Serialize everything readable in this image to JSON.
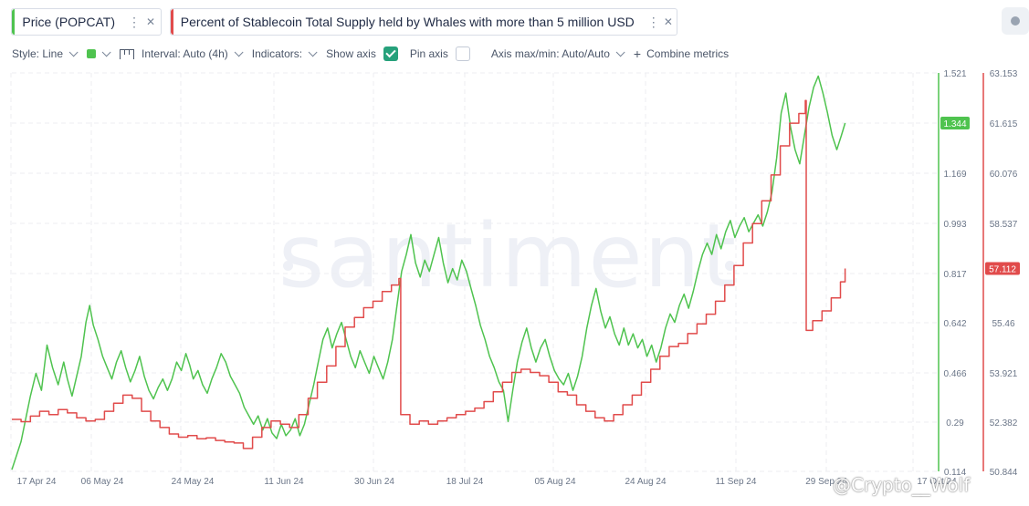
{
  "metrics": [
    {
      "label": "Price (POPCAT)",
      "color": "#4fc34f"
    },
    {
      "label": "Percent of Stablecoin Total Supply held by Whales with more than 5 million USD",
      "color": "#e14b4b"
    }
  ],
  "toolbar": {
    "style": "Style: Line",
    "interval": "Interval: Auto (4h)",
    "indicators": "Indicators:",
    "show_axis": "Show axis",
    "show_axis_checked": true,
    "pin_axis": "Pin axis",
    "pin_axis_checked": false,
    "axis_maxmin": "Axis max/min: Auto/Auto",
    "combine": "Combine metrics"
  },
  "watermark": "santiment",
  "credit": "@Crypto__Wolf",
  "chart_data": {
    "type": "line",
    "x_labels": [
      "17 Apr 24",
      "06 May 24",
      "24 May 24",
      "11 Jun 24",
      "30 Jun 24",
      "18 Jul 24",
      "05 Aug 24",
      "24 Aug 24",
      "11 Sep 24",
      "29 Sep 24",
      "17 Oct 24"
    ],
    "y_price_axis": [
      "1.521",
      "1.344",
      "1.169",
      "0.993",
      "0.817",
      "0.642",
      "0.466",
      "0.29",
      "0.114"
    ],
    "y_stable_axis": [
      "63.153",
      "61.615",
      "60.076",
      "58.537",
      "57.112",
      "55.46",
      "53.921",
      "52.382",
      "50.844"
    ],
    "price_ylim": [
      0.114,
      1.521
    ],
    "stable_ylim": [
      50.844,
      63.153
    ],
    "current_price_label": "1.344",
    "current_stable_label": "57.112",
    "grid": true,
    "series": [
      {
        "name": "Price (POPCAT)",
        "color": "#4fc34f",
        "points": [
          [
            0.0,
            0.12
          ],
          [
            0.5,
            0.17
          ],
          [
            1.0,
            0.22
          ],
          [
            1.5,
            0.3
          ],
          [
            2.0,
            0.38
          ],
          [
            2.6,
            0.46
          ],
          [
            3.2,
            0.4
          ],
          [
            3.8,
            0.56
          ],
          [
            4.4,
            0.48
          ],
          [
            5.0,
            0.42
          ],
          [
            5.6,
            0.5
          ],
          [
            6.0,
            0.44
          ],
          [
            6.5,
            0.38
          ],
          [
            7.0,
            0.45
          ],
          [
            7.5,
            0.52
          ],
          [
            8.0,
            0.64
          ],
          [
            8.4,
            0.7
          ],
          [
            8.8,
            0.63
          ],
          [
            9.3,
            0.58
          ],
          [
            9.8,
            0.52
          ],
          [
            10.3,
            0.48
          ],
          [
            10.8,
            0.44
          ],
          [
            11.3,
            0.5
          ],
          [
            11.8,
            0.54
          ],
          [
            12.3,
            0.48
          ],
          [
            12.8,
            0.43
          ],
          [
            13.3,
            0.47
          ],
          [
            13.8,
            0.52
          ],
          [
            14.3,
            0.45
          ],
          [
            14.8,
            0.4
          ],
          [
            15.3,
            0.37
          ],
          [
            15.8,
            0.41
          ],
          [
            16.3,
            0.44
          ],
          [
            16.8,
            0.4
          ],
          [
            17.3,
            0.44
          ],
          [
            17.8,
            0.5
          ],
          [
            18.3,
            0.47
          ],
          [
            18.8,
            0.53
          ],
          [
            19.2,
            0.49
          ],
          [
            19.6,
            0.44
          ],
          [
            20.1,
            0.47
          ],
          [
            20.6,
            0.42
          ],
          [
            21.1,
            0.39
          ],
          [
            21.6,
            0.44
          ],
          [
            22.1,
            0.48
          ],
          [
            22.6,
            0.53
          ],
          [
            23.1,
            0.5
          ],
          [
            23.6,
            0.45
          ],
          [
            24.1,
            0.42
          ],
          [
            24.6,
            0.39
          ],
          [
            25.1,
            0.34
          ],
          [
            25.6,
            0.31
          ],
          [
            26.1,
            0.28
          ],
          [
            26.6,
            0.31
          ],
          [
            27.1,
            0.26
          ],
          [
            27.6,
            0.3
          ],
          [
            28.1,
            0.25
          ],
          [
            28.6,
            0.23
          ],
          [
            29.1,
            0.28
          ],
          [
            29.6,
            0.24
          ],
          [
            30.1,
            0.26
          ],
          [
            30.6,
            0.3
          ],
          [
            31.1,
            0.24
          ],
          [
            31.6,
            0.28
          ],
          [
            32.1,
            0.35
          ],
          [
            32.6,
            0.42
          ],
          [
            33.1,
            0.5
          ],
          [
            33.6,
            0.58
          ],
          [
            34.1,
            0.62
          ],
          [
            34.6,
            0.55
          ],
          [
            35.1,
            0.6
          ],
          [
            35.6,
            0.64
          ],
          [
            36.1,
            0.58
          ],
          [
            36.6,
            0.52
          ],
          [
            37.1,
            0.48
          ],
          [
            37.6,
            0.54
          ],
          [
            38.1,
            0.5
          ],
          [
            38.6,
            0.46
          ],
          [
            39.1,
            0.52
          ],
          [
            39.6,
            0.48
          ],
          [
            40.1,
            0.44
          ],
          [
            40.6,
            0.5
          ],
          [
            41.1,
            0.58
          ],
          [
            41.6,
            0.7
          ],
          [
            42.1,
            0.82
          ],
          [
            42.6,
            0.88
          ],
          [
            43.1,
            0.95
          ],
          [
            43.6,
            0.85
          ],
          [
            44.1,
            0.8
          ],
          [
            44.6,
            0.86
          ],
          [
            45.1,
            0.82
          ],
          [
            45.6,
            0.88
          ],
          [
            46.1,
            0.94
          ],
          [
            46.6,
            0.85
          ],
          [
            47.1,
            0.78
          ],
          [
            47.6,
            0.83
          ],
          [
            48.1,
            0.79
          ],
          [
            48.6,
            0.86
          ],
          [
            49.1,
            0.82
          ],
          [
            49.6,
            0.76
          ],
          [
            50.1,
            0.7
          ],
          [
            50.6,
            0.63
          ],
          [
            51.1,
            0.58
          ],
          [
            51.6,
            0.52
          ],
          [
            52.1,
            0.48
          ],
          [
            52.6,
            0.43
          ],
          [
            53.1,
            0.4
          ],
          [
            53.6,
            0.29
          ],
          [
            54.1,
            0.4
          ],
          [
            54.6,
            0.5
          ],
          [
            55.1,
            0.57
          ],
          [
            55.6,
            0.62
          ],
          [
            56.1,
            0.55
          ],
          [
            56.6,
            0.5
          ],
          [
            57.1,
            0.55
          ],
          [
            57.6,
            0.58
          ],
          [
            58.1,
            0.52
          ],
          [
            58.6,
            0.47
          ],
          [
            59.1,
            0.44
          ],
          [
            59.6,
            0.42
          ],
          [
            60.1,
            0.46
          ],
          [
            60.6,
            0.4
          ],
          [
            61.1,
            0.45
          ],
          [
            61.6,
            0.52
          ],
          [
            62.1,
            0.62
          ],
          [
            62.6,
            0.7
          ],
          [
            63.1,
            0.76
          ],
          [
            63.6,
            0.68
          ],
          [
            64.1,
            0.62
          ],
          [
            64.6,
            0.66
          ],
          [
            65.1,
            0.6
          ],
          [
            65.6,
            0.56
          ],
          [
            66.1,
            0.62
          ],
          [
            66.6,
            0.56
          ],
          [
            67.1,
            0.6
          ],
          [
            67.6,
            0.55
          ],
          [
            68.1,
            0.58
          ],
          [
            68.6,
            0.52
          ],
          [
            69.1,
            0.56
          ],
          [
            69.6,
            0.5
          ],
          [
            70.1,
            0.55
          ],
          [
            70.6,
            0.62
          ],
          [
            71.1,
            0.67
          ],
          [
            71.6,
            0.64
          ],
          [
            72.1,
            0.7
          ],
          [
            72.6,
            0.74
          ],
          [
            73.1,
            0.69
          ],
          [
            73.6,
            0.75
          ],
          [
            74.1,
            0.82
          ],
          [
            74.6,
            0.88
          ],
          [
            75.1,
            0.92
          ],
          [
            75.6,
            0.88
          ],
          [
            76.1,
            0.95
          ],
          [
            76.6,
            0.9
          ],
          [
            77.1,
            0.96
          ],
          [
            77.6,
            1.0
          ],
          [
            78.1,
            0.94
          ],
          [
            78.6,
            0.98
          ],
          [
            79.1,
            1.01
          ],
          [
            79.6,
            0.96
          ],
          [
            80.1,
            0.99
          ],
          [
            80.6,
            1.02
          ],
          [
            81.1,
            0.98
          ],
          [
            81.6,
            1.03
          ],
          [
            82.1,
            1.1
          ],
          [
            82.6,
            1.22
          ],
          [
            83.1,
            1.38
          ],
          [
            83.6,
            1.45
          ],
          [
            84.1,
            1.33
          ],
          [
            84.6,
            1.25
          ],
          [
            85.1,
            1.2
          ],
          [
            85.6,
            1.3
          ],
          [
            86.1,
            1.4
          ],
          [
            86.6,
            1.47
          ],
          [
            87.1,
            1.51
          ],
          [
            87.6,
            1.45
          ],
          [
            88.1,
            1.38
          ],
          [
            88.6,
            1.3
          ],
          [
            89.1,
            1.25
          ],
          [
            89.6,
            1.3
          ],
          [
            90.0,
            1.344
          ]
        ]
      },
      {
        "name": "Percent of Stablecoin Total Supply held by Whales with more than 5 million USD",
        "color": "#e14b4b",
        "points": [
          [
            0.0,
            52.45
          ],
          [
            1.0,
            52.38
          ],
          [
            2.0,
            52.55
          ],
          [
            3.0,
            52.7
          ],
          [
            4.0,
            52.6
          ],
          [
            5.0,
            52.75
          ],
          [
            6.0,
            52.65
          ],
          [
            7.0,
            52.5
          ],
          [
            8.0,
            52.4
          ],
          [
            9.0,
            52.45
          ],
          [
            10.0,
            52.7
          ],
          [
            11.0,
            52.95
          ],
          [
            12.0,
            53.2
          ],
          [
            13.0,
            53.1
          ],
          [
            14.0,
            52.7
          ],
          [
            15.0,
            52.4
          ],
          [
            16.0,
            52.2
          ],
          [
            17.0,
            52.0
          ],
          [
            18.0,
            51.9
          ],
          [
            19.0,
            51.95
          ],
          [
            20.0,
            51.85
          ],
          [
            21.0,
            51.88
          ],
          [
            22.0,
            51.8
          ],
          [
            23.0,
            51.75
          ],
          [
            24.0,
            51.72
          ],
          [
            25.0,
            51.55
          ],
          [
            26.0,
            51.9
          ],
          [
            27.0,
            52.2
          ],
          [
            28.0,
            52.4
          ],
          [
            29.0,
            52.3
          ],
          [
            30.0,
            52.2
          ],
          [
            31.0,
            52.6
          ],
          [
            32.0,
            53.1
          ],
          [
            33.0,
            53.6
          ],
          [
            34.0,
            54.1
          ],
          [
            35.0,
            54.7
          ],
          [
            36.0,
            55.3
          ],
          [
            37.0,
            55.6
          ],
          [
            38.0,
            55.9
          ],
          [
            39.0,
            56.1
          ],
          [
            40.0,
            56.4
          ],
          [
            41.0,
            56.6
          ],
          [
            41.8,
            56.8
          ],
          [
            42.0,
            52.6
          ],
          [
            43.0,
            52.3
          ],
          [
            44.0,
            52.4
          ],
          [
            45.0,
            52.3
          ],
          [
            46.0,
            52.4
          ],
          [
            47.0,
            52.5
          ],
          [
            48.0,
            52.6
          ],
          [
            49.0,
            52.7
          ],
          [
            50.0,
            52.8
          ],
          [
            51.0,
            53.0
          ],
          [
            52.0,
            53.3
          ],
          [
            53.0,
            53.6
          ],
          [
            54.0,
            53.9
          ],
          [
            55.0,
            54.0
          ],
          [
            56.0,
            53.9
          ],
          [
            57.0,
            53.8
          ],
          [
            58.0,
            53.6
          ],
          [
            59.0,
            53.3
          ],
          [
            60.0,
            53.2
          ],
          [
            61.0,
            52.9
          ],
          [
            62.0,
            52.7
          ],
          [
            63.0,
            52.5
          ],
          [
            64.0,
            52.4
          ],
          [
            65.0,
            52.6
          ],
          [
            66.0,
            52.9
          ],
          [
            67.0,
            53.2
          ],
          [
            68.0,
            53.6
          ],
          [
            69.0,
            54.0
          ],
          [
            70.0,
            54.4
          ],
          [
            71.0,
            54.7
          ],
          [
            72.0,
            54.8
          ],
          [
            73.0,
            55.1
          ],
          [
            74.0,
            55.4
          ],
          [
            75.0,
            55.7
          ],
          [
            76.0,
            56.1
          ],
          [
            77.0,
            56.6
          ],
          [
            78.0,
            57.2
          ],
          [
            79.0,
            57.9
          ],
          [
            80.0,
            58.5
          ],
          [
            81.0,
            59.2
          ],
          [
            82.0,
            60.0
          ],
          [
            83.0,
            60.9
          ],
          [
            84.0,
            61.6
          ],
          [
            85.0,
            61.9
          ],
          [
            85.7,
            62.3
          ],
          [
            85.8,
            55.2
          ],
          [
            86.5,
            55.5
          ],
          [
            87.5,
            55.8
          ],
          [
            88.5,
            56.2
          ],
          [
            89.5,
            56.7
          ],
          [
            90.0,
            57.112
          ]
        ]
      }
    ]
  }
}
